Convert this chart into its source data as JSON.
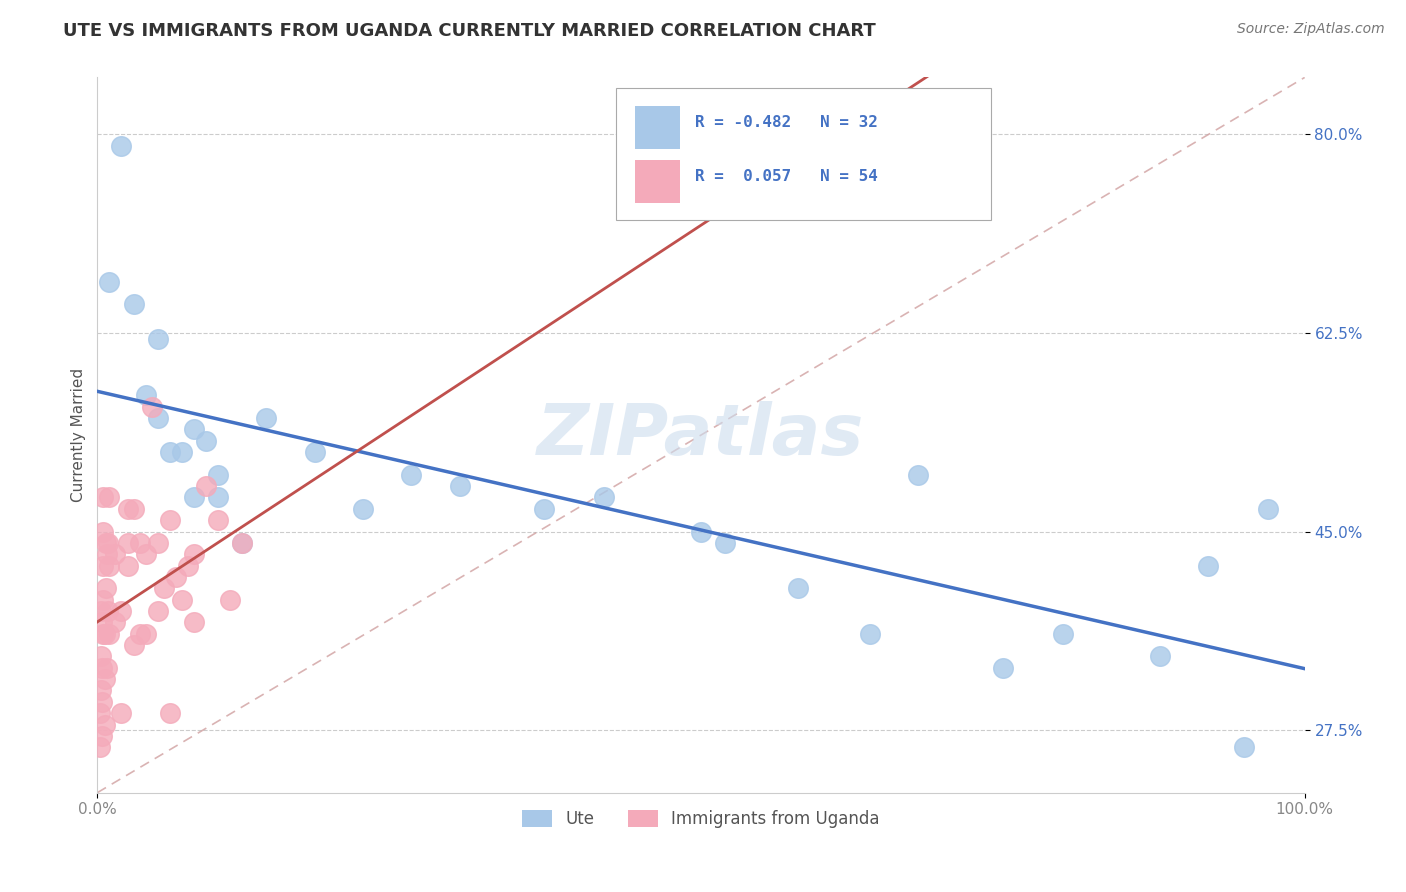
{
  "title": "UTE VS IMMIGRANTS FROM UGANDA CURRENTLY MARRIED CORRELATION CHART",
  "source_text": "Source: ZipAtlas.com",
  "ylabel": "Currently Married",
  "watermark": "ZIPatlas",
  "legend_r1": "R = -0.482",
  "legend_n1": "N = 32",
  "legend_r2": "R =  0.057",
  "legend_n2": "N = 54",
  "xlim": [
    0,
    100
  ],
  "ylim": [
    22,
    85
  ],
  "yticks": [
    27.5,
    45.0,
    62.5,
    80.0
  ],
  "xticks": [
    0,
    100
  ],
  "xtick_labels": [
    "0.0%",
    "100.0%"
  ],
  "ytick_labels": [
    "27.5%",
    "45.0%",
    "62.5%",
    "80.0%"
  ],
  "color_blue": "#A8C8E8",
  "color_pink": "#F4AABA",
  "line_blue": "#4472C4",
  "line_pink": "#C0504D",
  "line_gray_dash": "#D0A0A0",
  "ute_x": [
    1,
    2,
    3,
    4,
    5,
    5,
    6,
    7,
    8,
    8,
    9,
    10,
    10,
    12,
    14,
    18,
    22,
    26,
    30,
    37,
    42,
    50,
    52,
    58,
    64,
    68,
    75,
    80,
    88,
    92,
    95,
    97
  ],
  "ute_y": [
    67,
    79,
    65,
    57,
    62,
    55,
    52,
    52,
    48,
    54,
    53,
    50,
    48,
    44,
    55,
    52,
    47,
    50,
    49,
    47,
    48,
    45,
    44,
    40,
    36,
    50,
    33,
    36,
    34,
    42,
    26,
    47
  ],
  "uganda_x": [
    0.2,
    0.2,
    0.3,
    0.3,
    0.3,
    0.4,
    0.4,
    0.4,
    0.4,
    0.5,
    0.5,
    0.5,
    0.5,
    0.5,
    0.6,
    0.6,
    0.6,
    0.7,
    0.7,
    0.8,
    0.8,
    0.9,
    0.9,
    1.0,
    1.0,
    1.0,
    1.5,
    1.5,
    2.0,
    2.0,
    2.5,
    2.5,
    2.5,
    3.0,
    3.0,
    3.5,
    3.5,
    4.0,
    4.0,
    4.5,
    5.0,
    5.0,
    5.5,
    6.0,
    6.0,
    6.5,
    7.0,
    7.5,
    8.0,
    8.0,
    9.0,
    10.0,
    11.0,
    12.0
  ],
  "uganda_y": [
    26,
    29,
    31,
    34,
    38,
    27,
    30,
    33,
    37,
    36,
    39,
    42,
    45,
    48,
    28,
    32,
    36,
    40,
    44,
    33,
    43,
    38,
    44,
    36,
    42,
    48,
    37,
    43,
    29,
    38,
    42,
    44,
    47,
    35,
    47,
    36,
    44,
    36,
    43,
    56,
    38,
    44,
    40,
    29,
    46,
    41,
    39,
    42,
    37,
    43,
    49,
    46,
    39,
    44
  ],
  "title_fontsize": 13,
  "tick_fontsize": 11,
  "source_fontsize": 10,
  "legend_fontsize": 12
}
